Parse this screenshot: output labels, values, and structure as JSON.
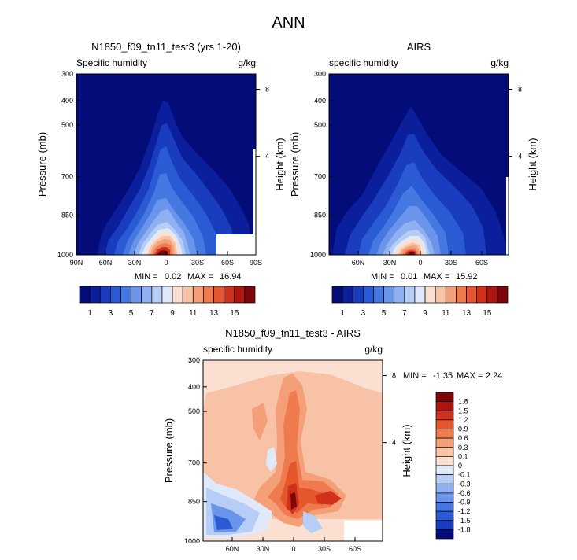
{
  "page_title": "ANN",
  "chart_data": [
    {
      "type": "contour",
      "title": "N1850_f09_tn11_test3 (yrs 1-20)",
      "variable_label": "Specific humidity",
      "units": "g/kg",
      "ylabel": "Pressure (mb)",
      "ylabel_right": "Height (km)",
      "y_ticks": [
        "300",
        "400",
        "500",
        "700",
        "850",
        "1000"
      ],
      "y_ticks_right": [
        "8",
        "4"
      ],
      "x_ticks": [
        "90N",
        "60N",
        "30N",
        "0",
        "30S",
        "60S",
        "90S"
      ],
      "min_label": "MIN =",
      "min_value": "0.02",
      "max_label": "MAX =",
      "max_value": "16.94"
    },
    {
      "type": "contour",
      "title": "AIRS",
      "variable_label": "specific humidity",
      "units": "g/kg",
      "ylabel": "Pressure (mb)",
      "ylabel_right": "Height (km)",
      "y_ticks": [
        "300",
        "400",
        "500",
        "700",
        "850",
        "1000"
      ],
      "y_ticks_right": [
        "8",
        "4"
      ],
      "x_ticks": [
        "60N",
        "30N",
        "0",
        "30S",
        "60S"
      ],
      "min_label": "MIN =",
      "min_value": "0.01",
      "max_label": "MAX =",
      "max_value": "15.92"
    },
    {
      "type": "contour",
      "title": "N1850_f09_tn11_test3 - AIRS",
      "variable_label": "specific humidity",
      "units": "g/kg",
      "ylabel": "Pressure (mb)",
      "ylabel_right": "Height (km)",
      "y_ticks": [
        "300",
        "400",
        "500",
        "700",
        "850",
        "1000"
      ],
      "y_ticks_right": [
        "8",
        "4"
      ],
      "x_ticks": [
        "60N",
        "30N",
        "0",
        "30S",
        "60S"
      ],
      "min_label": "MIN =",
      "min_value": "-1.35",
      "max_label": "MAX =",
      "max_value": "2.24"
    }
  ],
  "colorbar_top": {
    "labels": [
      "1",
      "3",
      "5",
      "7",
      "9",
      "11",
      "13",
      "15"
    ],
    "colors": [
      "#040c7a",
      "#0b1f9c",
      "#1a3cbe",
      "#2a5ad4",
      "#4678e2",
      "#6a95ea",
      "#90b1f1",
      "#b6cdf6",
      "#dfe9f9",
      "#fbe0d2",
      "#f8c2a6",
      "#f59f78",
      "#ef7a4e",
      "#e5552e",
      "#cf311b",
      "#ad1510",
      "#7e060a"
    ]
  },
  "colorbar_diff": {
    "labels": [
      "1.8",
      "1.5",
      "1.2",
      "0.9",
      "0.6",
      "0.3",
      "0.1",
      "0",
      "-0.1",
      "-0.3",
      "-0.6",
      "-0.9",
      "-1.2",
      "-1.5",
      "-1.8"
    ],
    "colors": [
      "#7e060a",
      "#ad1510",
      "#cf311b",
      "#e5552e",
      "#ef7a4e",
      "#f59f78",
      "#f8c2a6",
      "#fbe0d2",
      "#dfe9f9",
      "#b6cdf6",
      "#90b1f1",
      "#6a95ea",
      "#4678e2",
      "#2a5ad4",
      "#1a3cbe",
      "#040c7a"
    ]
  }
}
